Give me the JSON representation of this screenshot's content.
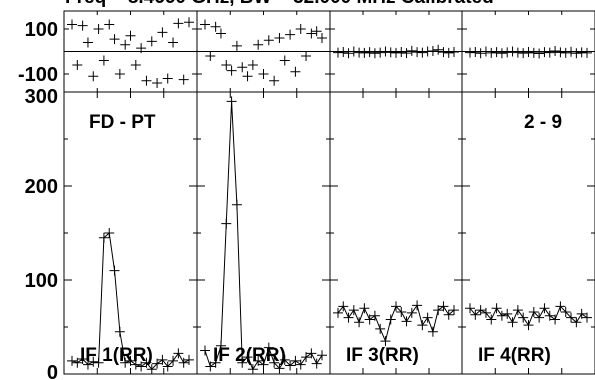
{
  "chart_data": {
    "type": "scatter",
    "title": "Freq = 8.4660 GHz, BW = 32.000 MHz  Calibrated",
    "source_label": "FD - PT",
    "baseline_label": "2 - 9",
    "phase_panel": {
      "y_tick_labels": [
        "100",
        "-100"
      ],
      "ylim": [
        -180,
        180
      ]
    },
    "amp_panel": {
      "y_tick_labels": [
        "300",
        "200",
        "100",
        "0"
      ],
      "ylim": [
        0,
        300
      ]
    },
    "ifs": [
      {
        "label": "IF 1(RR)",
        "phase": [
          120,
          -60,
          115,
          40,
          -110,
          100,
          -40,
          120,
          55,
          -100,
          30,
          70,
          -60,
          15,
          -130,
          45,
          -140,
          85,
          -120,
          40,
          125,
          -125,
          130
        ],
        "amp": [
          14,
          12,
          16,
          10,
          13,
          12,
          145,
          150,
          110,
          45,
          12,
          14,
          10,
          8,
          12,
          5,
          11,
          15,
          8,
          14,
          22,
          12,
          15
        ]
      },
      {
        "label": "IF 2(RR)",
        "phase": [
          120,
          -20,
          110,
          80,
          -60,
          -85,
          25,
          -70,
          -110,
          -60,
          30,
          -100,
          50,
          -130,
          60,
          -40,
          75,
          -90,
          100,
          -20,
          80,
          90,
          60
        ],
        "amp": [
          25,
          8,
          12,
          30,
          160,
          290,
          180,
          12,
          18,
          5,
          14,
          10,
          28,
          12,
          6,
          15,
          9,
          14,
          10,
          18,
          22,
          11,
          20
        ]
      },
      {
        "label": "IF 3(RR)",
        "phase": [
          -5,
          -2,
          -8,
          0,
          -5,
          -6,
          -3,
          -8,
          -5,
          0,
          -4,
          -6,
          -2,
          -7,
          3,
          -3,
          -5,
          0,
          2,
          8,
          -3,
          -6,
          -2
        ],
        "amp": [
          65,
          72,
          60,
          68,
          55,
          70,
          58,
          62,
          48,
          35,
          58,
          72,
          66,
          56,
          65,
          73,
          52,
          60,
          45,
          68,
          72,
          63,
          68
        ]
      },
      {
        "label": "IF 4(RR)",
        "phase": [
          -5,
          -2,
          -8,
          0,
          -6,
          -3,
          -8,
          -4,
          0,
          -5,
          -7,
          -2,
          -6,
          -9,
          -3,
          -5,
          2,
          -4,
          -6,
          -1,
          -8,
          -4,
          -6
        ],
        "amp": [
          70,
          63,
          68,
          65,
          58,
          70,
          62,
          64,
          55,
          68,
          60,
          52,
          66,
          60,
          70,
          62,
          58,
          72,
          66,
          60,
          55,
          64,
          60
        ]
      }
    ]
  }
}
